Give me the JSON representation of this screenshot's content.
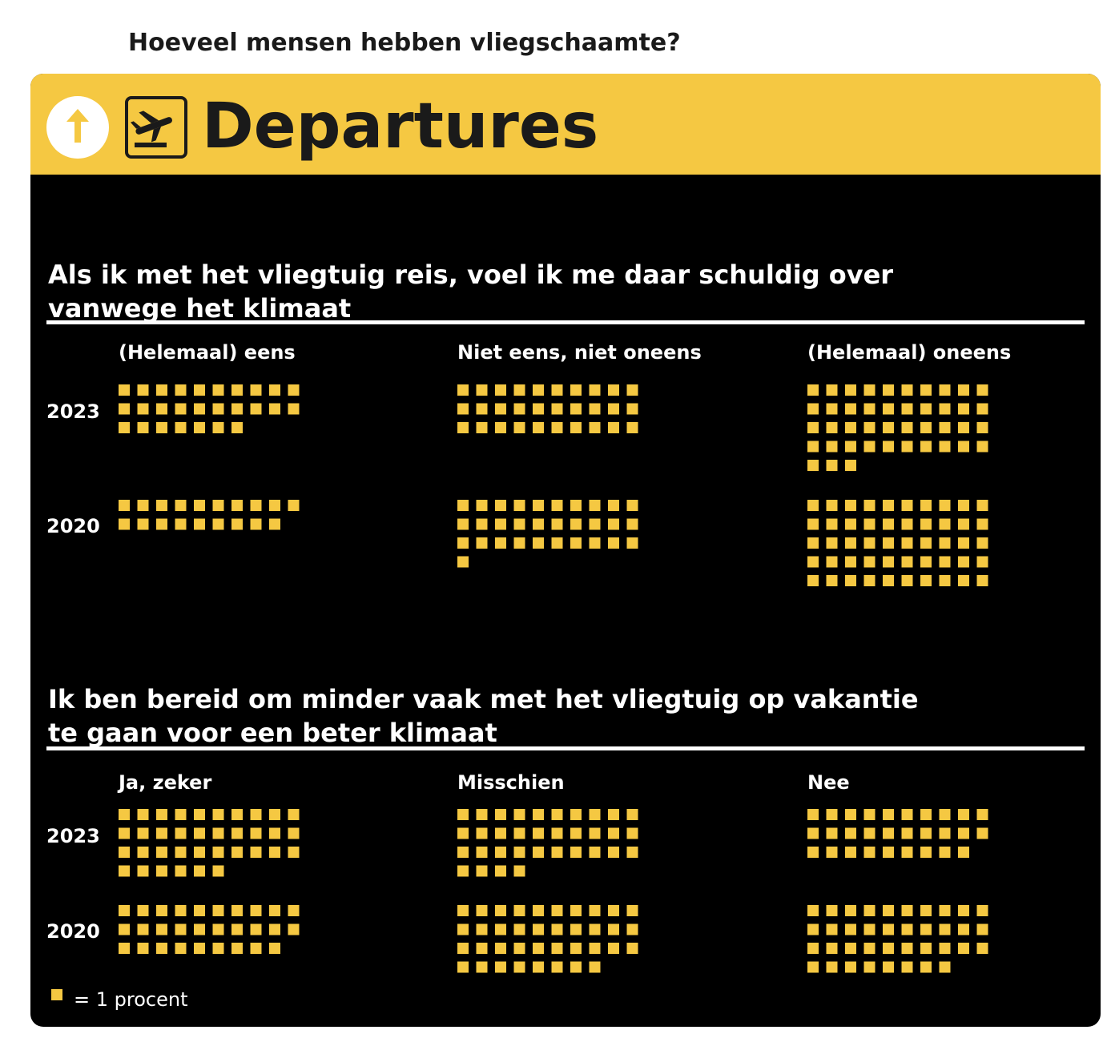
{
  "page_title": "Hoeveel mensen hebben vliegschaamte?",
  "board": {
    "title": "Departures",
    "icons": [
      "arrow-up-icon",
      "airplane-departure-icon"
    ],
    "colors": {
      "header_bg": "#f5c842",
      "board_bg": "#000000",
      "square": "#f5c842",
      "text": "#ffffff",
      "header_text": "#1a1a1a"
    }
  },
  "legend": {
    "label": "= 1 procent"
  },
  "chart_data": [
    {
      "type": "waffle",
      "title": "Als ik met het vliegtuig reis, voel ik me daar schuldig over vanwege het klimaat",
      "title_lines": [
        "Als ik met het vliegtuig reis, voel ik me daar schuldig over",
        "vanwege het klimaat"
      ],
      "unit": "procent",
      "categories": [
        "(Helemaal) eens",
        "Niet eens, niet oneens",
        "(Helemaal) oneens"
      ],
      "years": [
        "2023",
        "2020"
      ],
      "series": [
        {
          "name": "2023",
          "values": [
            27,
            30,
            43
          ]
        },
        {
          "name": "2020",
          "values": [
            19,
            31,
            50
          ]
        }
      ]
    },
    {
      "type": "waffle",
      "title": "Ik ben bereid om minder vaak met het vliegtuig op vakantie te gaan voor een beter klimaat",
      "title_lines": [
        "Ik ben bereid om minder vaak met het vliegtuig op vakantie",
        "te gaan voor een beter klimaat"
      ],
      "unit": "procent",
      "categories": [
        "Ja, zeker",
        "Misschien",
        "Nee"
      ],
      "years": [
        "2023",
        "2020"
      ],
      "series": [
        {
          "name": "2023",
          "values": [
            36,
            34,
            29
          ]
        },
        {
          "name": "2020",
          "values": [
            29,
            38,
            38
          ]
        }
      ]
    }
  ]
}
